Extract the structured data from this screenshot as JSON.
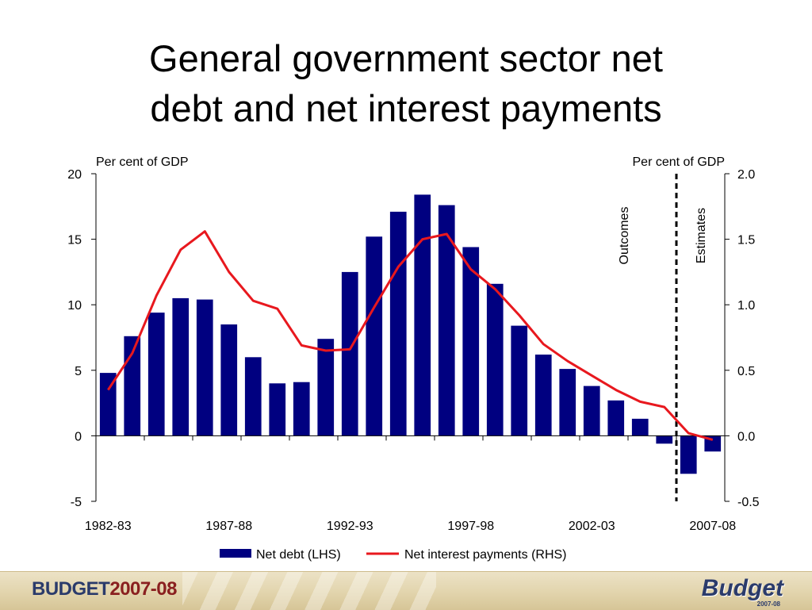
{
  "slide": {
    "title_line1": "General government sector net",
    "title_line2": "debt and net interest payments"
  },
  "footer": {
    "left_prefix": "BUDGET",
    "left_year": "2007-08",
    "right_logo": "Budget",
    "right_sub": "2007-08"
  },
  "chart_data": {
    "type": "bar",
    "left_axis": {
      "unit_label": "Per cent of GDP",
      "ylim": [
        -5,
        20
      ],
      "ticks": [
        "20",
        "15",
        "10",
        "5",
        "0",
        "-5"
      ],
      "tick_values": [
        20,
        15,
        10,
        5,
        0,
        -5
      ]
    },
    "right_axis": {
      "unit_label": "Per cent of GDP",
      "ylim": [
        -0.5,
        2.0
      ],
      "ticks": [
        "2.0",
        "1.5",
        "1.0",
        "0.5",
        "0.0",
        "-0.5"
      ],
      "tick_values": [
        2.0,
        1.5,
        1.0,
        0.5,
        0.0,
        -0.5
      ]
    },
    "categories": [
      "1982-83",
      "1983-84",
      "1984-85",
      "1985-86",
      "1986-87",
      "1987-88",
      "1988-89",
      "1989-90",
      "1990-91",
      "1991-92",
      "1992-93",
      "1993-94",
      "1994-95",
      "1995-96",
      "1996-97",
      "1997-98",
      "1998-99",
      "1999-00",
      "2000-01",
      "2001-02",
      "2002-03",
      "2003-04",
      "2004-05",
      "2005-06",
      "2006-07",
      "2007-08"
    ],
    "x_tick_labels": [
      {
        "index": 0,
        "label": "1982-83"
      },
      {
        "index": 5,
        "label": "1987-88"
      },
      {
        "index": 10,
        "label": "1992-93"
      },
      {
        "index": 15,
        "label": "1997-98"
      },
      {
        "index": 20,
        "label": "2002-03"
      },
      {
        "index": 25,
        "label": "2007-08"
      }
    ],
    "series": [
      {
        "name": "Net debt (LHS)",
        "type": "bar",
        "axis": "left",
        "color": "#000080",
        "values": [
          4.8,
          7.6,
          9.4,
          10.5,
          10.4,
          8.5,
          6.0,
          4.0,
          4.1,
          7.4,
          12.5,
          15.2,
          17.1,
          18.4,
          17.6,
          14.4,
          11.6,
          8.4,
          6.2,
          5.1,
          3.8,
          2.7,
          1.3,
          -0.6,
          -2.9,
          -1.2
        ]
      },
      {
        "name": "Net interest payments (RHS)",
        "type": "line",
        "axis": "right",
        "color": "#e8181e",
        "values": [
          0.35,
          0.63,
          1.07,
          1.42,
          1.56,
          1.25,
          1.03,
          0.97,
          0.69,
          0.65,
          0.66,
          0.98,
          1.29,
          1.5,
          1.54,
          1.27,
          1.12,
          0.92,
          0.7,
          0.57,
          0.46,
          0.35,
          0.26,
          0.22,
          0.02,
          -0.03
        ]
      }
    ],
    "annotations": {
      "outcomes_label": "Outcomes",
      "estimates_label": "Estimates",
      "divider_after_category": "2005-06"
    },
    "legend_position": "bottom",
    "grid": false
  }
}
